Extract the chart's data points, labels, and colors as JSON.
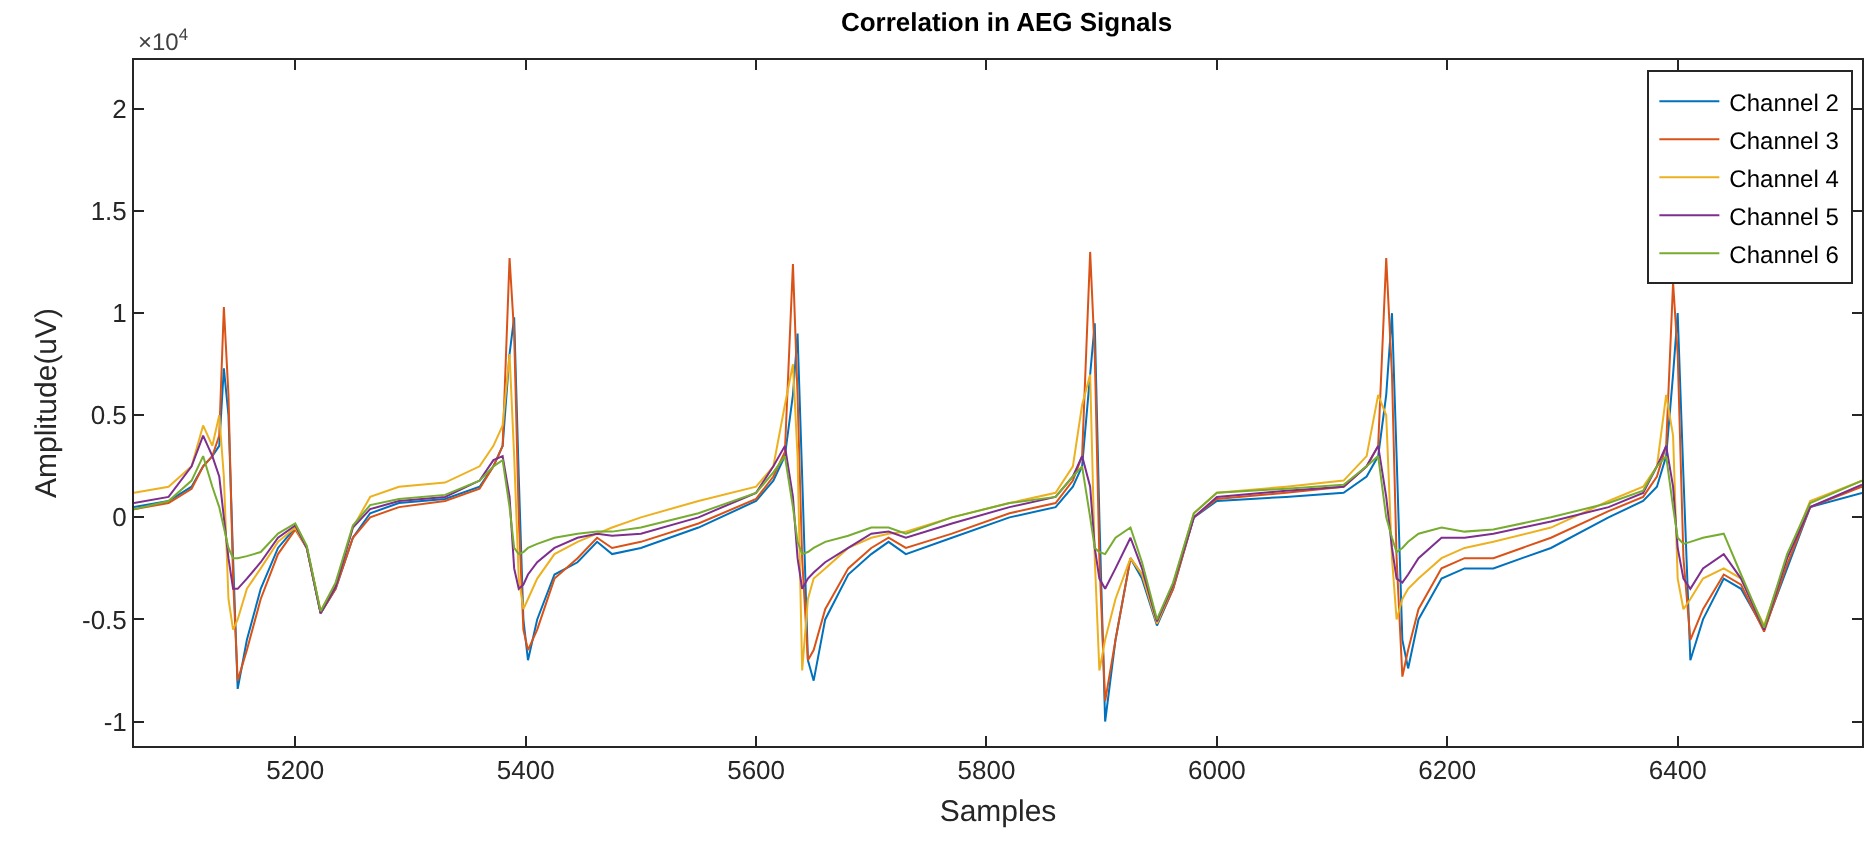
{
  "chart_data": {
    "type": "line",
    "title": "Correlation in AEG Signals",
    "xlabel": "Samples",
    "ylabel": "Amplitude(uV)",
    "annotations": [
      "×10$^{4}$"
    ],
    "x": [
      5060,
      5090,
      5110,
      5120,
      5128,
      5134,
      5138,
      5142,
      5146,
      5150,
      5158,
      5170,
      5185,
      5200,
      5210,
      5222,
      5235,
      5250,
      5265,
      5290,
      5330,
      5360,
      5372,
      5380,
      5386,
      5390,
      5394,
      5398,
      5402,
      5410,
      5425,
      5445,
      5462,
      5475,
      5500,
      5550,
      5600,
      5615,
      5625,
      5632,
      5636,
      5640,
      5645,
      5650,
      5660,
      5680,
      5700,
      5715,
      5730,
      5770,
      5820,
      5860,
      5875,
      5883,
      5890,
      5894,
      5898,
      5903,
      5912,
      5925,
      5935,
      5948,
      5962,
      5980,
      6000,
      6060,
      6110,
      6130,
      6140,
      6147,
      6152,
      6156,
      6161,
      6166,
      6175,
      6195,
      6215,
      6240,
      6290,
      6340,
      6370,
      6382,
      6390,
      6396,
      6400,
      6405,
      6411,
      6422,
      6440,
      6455,
      6475,
      6495,
      6515,
      6560
    ],
    "series": [
      {
        "name": "Channel 2",
        "color": "#0072bd",
        "values": [
          0.05,
          0.08,
          0.15,
          0.25,
          0.3,
          0.35,
          0.73,
          0.5,
          -0.2,
          -0.84,
          -0.6,
          -0.35,
          -0.15,
          -0.05,
          -0.15,
          -0.47,
          -0.35,
          -0.1,
          0.02,
          0.07,
          0.09,
          0.15,
          0.25,
          0.35,
          0.8,
          0.98,
          0.2,
          -0.5,
          -0.7,
          -0.5,
          -0.28,
          -0.22,
          -0.12,
          -0.18,
          -0.15,
          -0.05,
          0.08,
          0.18,
          0.3,
          0.6,
          0.9,
          0.2,
          -0.7,
          -0.8,
          -0.5,
          -0.28,
          -0.18,
          -0.12,
          -0.18,
          -0.1,
          0,
          0.05,
          0.15,
          0.25,
          0.7,
          0.95,
          0,
          -1,
          -0.6,
          -0.2,
          -0.3,
          -0.53,
          -0.35,
          0,
          0.08,
          0.1,
          0.12,
          0.2,
          0.3,
          0.6,
          1,
          0.3,
          -0.6,
          -0.74,
          -0.5,
          -0.3,
          -0.25,
          -0.25,
          -0.15,
          0,
          0.08,
          0.15,
          0.3,
          0.7,
          1,
          0.2,
          -0.7,
          -0.5,
          -0.3,
          -0.35,
          -0.55,
          -0.25,
          0.05,
          0.12
        ]
      },
      {
        "name": "Channel 3",
        "color": "#d95319",
        "values": [
          0.04,
          0.07,
          0.14,
          0.25,
          0.3,
          0.4,
          1.03,
          0.6,
          -0.3,
          -0.8,
          -0.65,
          -0.4,
          -0.18,
          -0.06,
          -0.15,
          -0.47,
          -0.35,
          -0.1,
          0,
          0.05,
          0.08,
          0.14,
          0.25,
          0.35,
          1.27,
          0.9,
          0,
          -0.55,
          -0.65,
          -0.55,
          -0.3,
          -0.2,
          -0.1,
          -0.15,
          -0.12,
          -0.03,
          0.09,
          0.2,
          0.32,
          1.24,
          0.6,
          -0.2,
          -0.7,
          -0.65,
          -0.45,
          -0.25,
          -0.15,
          -0.1,
          -0.15,
          -0.08,
          0.02,
          0.07,
          0.18,
          0.3,
          1.3,
          0.8,
          -0.2,
          -0.9,
          -0.6,
          -0.2,
          -0.28,
          -0.52,
          -0.35,
          0,
          0.09,
          0.12,
          0.15,
          0.25,
          0.35,
          1.27,
          0.7,
          -0.2,
          -0.78,
          -0.65,
          -0.45,
          -0.25,
          -0.2,
          -0.2,
          -0.1,
          0.03,
          0.1,
          0.2,
          0.35,
          1.15,
          0.8,
          -0.2,
          -0.6,
          -0.45,
          -0.28,
          -0.33,
          -0.56,
          -0.23,
          0.05,
          0.15
        ]
      },
      {
        "name": "Channel 4",
        "color": "#edb120",
        "values": [
          0.12,
          0.15,
          0.25,
          0.45,
          0.35,
          0.5,
          0.2,
          -0.4,
          -0.55,
          -0.5,
          -0.35,
          -0.25,
          -0.12,
          -0.05,
          -0.15,
          -0.46,
          -0.33,
          -0.05,
          0.1,
          0.15,
          0.17,
          0.25,
          0.35,
          0.45,
          0.8,
          0.3,
          -0.3,
          -0.45,
          -0.4,
          -0.3,
          -0.18,
          -0.12,
          -0.08,
          -0.05,
          0,
          0.08,
          0.15,
          0.25,
          0.55,
          0.75,
          0.3,
          -0.75,
          -0.4,
          -0.3,
          -0.25,
          -0.15,
          -0.1,
          -0.08,
          -0.07,
          0,
          0.07,
          0.12,
          0.25,
          0.55,
          0.7,
          -0.2,
          -0.75,
          -0.6,
          -0.4,
          -0.2,
          -0.28,
          -0.52,
          -0.33,
          0.02,
          0.12,
          0.15,
          0.18,
          0.3,
          0.6,
          0.5,
          -0.2,
          -0.5,
          -0.4,
          -0.35,
          -0.3,
          -0.2,
          -0.15,
          -0.12,
          -0.05,
          0.08,
          0.15,
          0.25,
          0.6,
          0.4,
          -0.3,
          -0.45,
          -0.4,
          -0.3,
          -0.25,
          -0.3,
          -0.53,
          -0.2,
          0.08,
          0.18
        ]
      },
      {
        "name": "Channel 5",
        "color": "#7e2f8e",
        "values": [
          0.07,
          0.1,
          0.25,
          0.4,
          0.3,
          0.2,
          0,
          -0.2,
          -0.35,
          -0.35,
          -0.3,
          -0.22,
          -0.1,
          -0.04,
          -0.15,
          -0.47,
          -0.34,
          -0.05,
          0.04,
          0.08,
          0.1,
          0.18,
          0.28,
          0.3,
          0.1,
          -0.25,
          -0.35,
          -0.33,
          -0.28,
          -0.22,
          -0.15,
          -0.1,
          -0.08,
          -0.09,
          -0.08,
          0,
          0.12,
          0.25,
          0.35,
          0.1,
          -0.2,
          -0.35,
          -0.3,
          -0.27,
          -0.22,
          -0.15,
          -0.08,
          -0.07,
          -0.1,
          -0.03,
          0.05,
          0.1,
          0.2,
          0.3,
          0.15,
          -0.15,
          -0.3,
          -0.35,
          -0.25,
          -0.1,
          -0.25,
          -0.51,
          -0.33,
          0,
          0.1,
          0.13,
          0.15,
          0.25,
          0.35,
          0.1,
          -0.15,
          -0.3,
          -0.32,
          -0.28,
          -0.2,
          -0.1,
          -0.1,
          -0.08,
          -0.02,
          0.05,
          0.12,
          0.25,
          0.35,
          0.15,
          -0.15,
          -0.3,
          -0.35,
          -0.25,
          -0.18,
          -0.3,
          -0.55,
          -0.2,
          0.05,
          0.16
        ]
      },
      {
        "name": "Channel 6",
        "color": "#77ac30",
        "values": [
          0.04,
          0.08,
          0.18,
          0.3,
          0.15,
          0.05,
          -0.05,
          -0.15,
          -0.2,
          -0.2,
          -0.19,
          -0.17,
          -0.08,
          -0.03,
          -0.14,
          -0.46,
          -0.32,
          -0.04,
          0.06,
          0.09,
          0.11,
          0.18,
          0.25,
          0.28,
          0.05,
          -0.15,
          -0.18,
          -0.17,
          -0.15,
          -0.13,
          -0.1,
          -0.08,
          -0.07,
          -0.07,
          -0.05,
          0.02,
          0.12,
          0.22,
          0.3,
          0.05,
          -0.12,
          -0.18,
          -0.17,
          -0.15,
          -0.12,
          -0.09,
          -0.05,
          -0.05,
          -0.08,
          0,
          0.07,
          0.1,
          0.2,
          0.25,
          0,
          -0.15,
          -0.17,
          -0.18,
          -0.1,
          -0.05,
          -0.22,
          -0.5,
          -0.32,
          0.02,
          0.12,
          0.14,
          0.16,
          0.25,
          0.3,
          0,
          -0.1,
          -0.17,
          -0.15,
          -0.12,
          -0.08,
          -0.05,
          -0.07,
          -0.06,
          0,
          0.07,
          0.13,
          0.25,
          0.3,
          0.05,
          -0.1,
          -0.13,
          -0.12,
          -0.1,
          -0.08,
          -0.28,
          -0.54,
          -0.18,
          0.07,
          0.18
        ]
      }
    ],
    "xlim": [
      5060,
      6560
    ],
    "xticks": [
      5200,
      5400,
      5600,
      5800,
      6000,
      6200,
      6400
    ],
    "ylim": [
      -1.12,
      2.24
    ],
    "yticks": [
      -1,
      -0.5,
      0,
      0.5,
      1,
      1.5,
      2
    ],
    "grid": false,
    "legend": "top right",
    "marker": "none",
    "line_style": "solid"
  }
}
